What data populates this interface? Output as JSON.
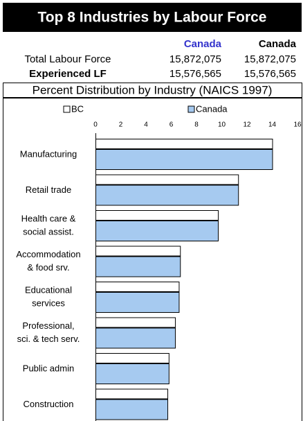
{
  "header": {
    "title": "Top 8 Industries by Labour Force"
  },
  "table": {
    "columns": [
      "Canada",
      "Canada"
    ],
    "rows": [
      [
        "Total Labour Force",
        "15,872,075",
        "15,872,075"
      ],
      [
        "Experienced LF",
        "15,576,565",
        "15,576,565"
      ]
    ]
  },
  "chart_data": {
    "type": "bar",
    "orientation": "horizontal",
    "title": "Percent Distribution by Industry (NAICS 1997)",
    "categories": [
      "Manufacturing",
      "Retail trade",
      "Health care &\nsocial assist.",
      "Accommodation\n& food srv.",
      "Educational\nservices",
      "Professional,\nsci. & tech serv.",
      "Public admin",
      "Construction"
    ],
    "series": [
      {
        "name": "BC",
        "color": "#ffffff",
        "values": [
          14.0,
          11.3,
          9.7,
          6.7,
          6.6,
          6.3,
          5.8,
          5.7
        ]
      },
      {
        "name": "Canada",
        "color": "#a6caf0",
        "values": [
          14.0,
          11.3,
          9.7,
          6.7,
          6.6,
          6.3,
          5.8,
          5.7
        ]
      }
    ],
    "xlim": [
      0,
      16
    ],
    "xticks": [
      0,
      2,
      4,
      6,
      8,
      10,
      12,
      14,
      16
    ],
    "grid": false,
    "legend": "top"
  }
}
